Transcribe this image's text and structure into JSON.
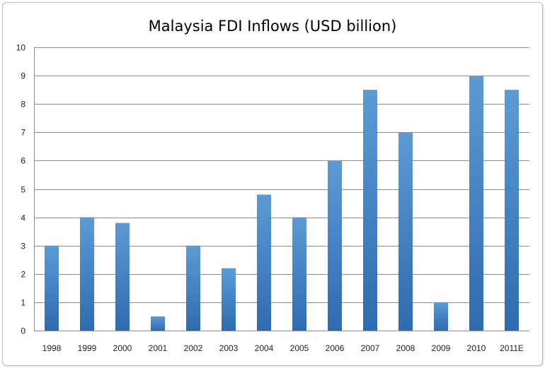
{
  "chart_data": {
    "type": "bar",
    "title": "Malaysia FDI Inflows (USD billion)",
    "categories": [
      "1998",
      "1999",
      "2000",
      "2001",
      "2002",
      "2003",
      "2004",
      "2005",
      "2006",
      "2007",
      "2008",
      "2009",
      "2010",
      "2011E"
    ],
    "values": [
      3,
      4,
      3.8,
      0.5,
      3,
      2.2,
      4.8,
      4,
      6,
      8.5,
      7,
      1,
      9,
      8.5
    ],
    "ylim": [
      0,
      10
    ],
    "yticks": [
      0,
      1,
      2,
      3,
      4,
      5,
      6,
      7,
      8,
      9,
      10
    ],
    "grid": true,
    "legend": "none",
    "bar_color_top": "#5b9bd5",
    "bar_color_bottom": "#2e6bb0"
  }
}
